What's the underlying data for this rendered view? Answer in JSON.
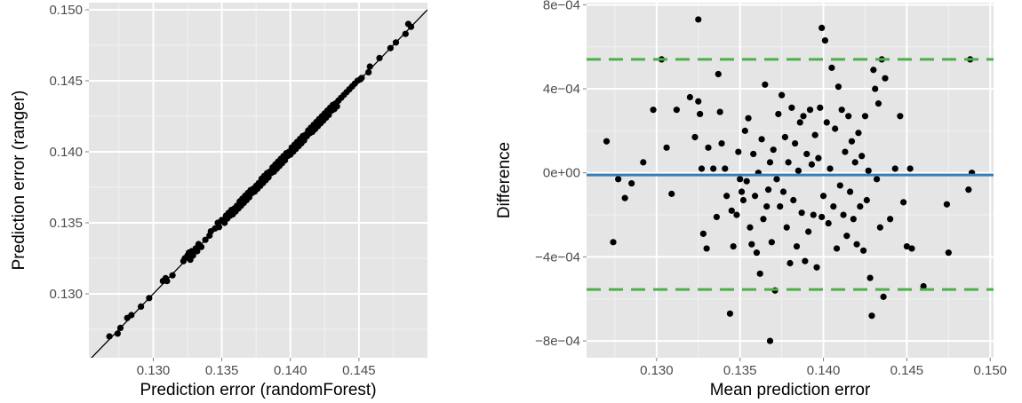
{
  "colors": {
    "panel_background": "#e5e5e5",
    "grid_major": "#ffffff",
    "grid_minor": "#f2f2f2",
    "points": "#000000",
    "identity_line": "#000000",
    "mean_line": "#377eb8",
    "limit_lines": "#4daf4a"
  },
  "chart_data": [
    {
      "type": "scatter",
      "xlabel": "Prediction error (randomForest)",
      "ylabel": "Prediction error (ranger)",
      "xlim": [
        0.1253,
        0.15
      ],
      "ylim": [
        0.1255,
        0.1505
      ],
      "x_ticks": [
        0.13,
        0.135,
        0.14,
        0.145
      ],
      "x_tick_labels": [
        "0.130",
        "0.135",
        "0.140",
        "0.145"
      ],
      "y_ticks": [
        0.13,
        0.135,
        0.14,
        0.145,
        0.15
      ],
      "y_tick_labels": [
        "0.130",
        "0.135",
        "0.140",
        "0.145",
        "0.150"
      ],
      "reference_line": {
        "kind": "identity",
        "slope": 1,
        "intercept": 0
      },
      "grid": true,
      "points": [
        [
          0.1268,
          0.127
        ],
        [
          0.1274,
          0.1272
        ],
        [
          0.1276,
          0.1276
        ],
        [
          0.1281,
          0.1283
        ],
        [
          0.1284,
          0.1285
        ],
        [
          0.1291,
          0.1291
        ],
        [
          0.1297,
          0.1297
        ],
        [
          0.1307,
          0.1309
        ],
        [
          0.1309,
          0.1311
        ],
        [
          0.131,
          0.1309
        ],
        [
          0.1314,
          0.1313
        ],
        [
          0.1322,
          0.1323
        ],
        [
          0.1323,
          0.1325
        ],
        [
          0.1325,
          0.1327
        ],
        [
          0.1326,
          0.1329
        ],
        [
          0.1327,
          0.1324
        ],
        [
          0.1328,
          0.133
        ],
        [
          0.1329,
          0.1327
        ],
        [
          0.1331,
          0.1332
        ],
        [
          0.1332,
          0.133
        ],
        [
          0.1333,
          0.1335
        ],
        [
          0.1335,
          0.1333
        ],
        [
          0.1338,
          0.1338
        ],
        [
          0.1341,
          0.1341
        ],
        [
          0.1342,
          0.1344
        ],
        [
          0.1345,
          0.1346
        ],
        [
          0.1347,
          0.135
        ],
        [
          0.1348,
          0.1347
        ],
        [
          0.135,
          0.1352
        ],
        [
          0.1352,
          0.135
        ],
        [
          0.1353,
          0.1355
        ],
        [
          0.1354,
          0.1353
        ],
        [
          0.1355,
          0.1357
        ],
        [
          0.1356,
          0.1355
        ],
        [
          0.1357,
          0.1359
        ],
        [
          0.1358,
          0.1356
        ],
        [
          0.1359,
          0.136
        ],
        [
          0.136,
          0.1358
        ],
        [
          0.1361,
          0.1362
        ],
        [
          0.1362,
          0.136
        ],
        [
          0.1363,
          0.1365
        ],
        [
          0.1364,
          0.1362
        ],
        [
          0.1365,
          0.1367
        ],
        [
          0.1366,
          0.1364
        ],
        [
          0.1367,
          0.1369
        ],
        [
          0.1368,
          0.1366
        ],
        [
          0.1369,
          0.1371
        ],
        [
          0.137,
          0.1368
        ],
        [
          0.1371,
          0.1373
        ],
        [
          0.1372,
          0.1371
        ],
        [
          0.1373,
          0.1374
        ],
        [
          0.1374,
          0.1372
        ],
        [
          0.1375,
          0.1376
        ],
        [
          0.1376,
          0.1374
        ],
        [
          0.1377,
          0.1378
        ],
        [
          0.1378,
          0.1376
        ],
        [
          0.1379,
          0.1381
        ],
        [
          0.138,
          0.1378
        ],
        [
          0.1381,
          0.1383
        ],
        [
          0.1382,
          0.138
        ],
        [
          0.1383,
          0.1385
        ],
        [
          0.1384,
          0.1382
        ],
        [
          0.1385,
          0.1386
        ],
        [
          0.1386,
          0.1385
        ],
        [
          0.1387,
          0.1389
        ],
        [
          0.1388,
          0.1386
        ],
        [
          0.1389,
          0.1391
        ],
        [
          0.139,
          0.1388
        ],
        [
          0.1391,
          0.1393
        ],
        [
          0.1392,
          0.139
        ],
        [
          0.1393,
          0.1395
        ],
        [
          0.1394,
          0.1392
        ],
        [
          0.1395,
          0.1397
        ],
        [
          0.1396,
          0.1394
        ],
        [
          0.1397,
          0.1399
        ],
        [
          0.1398,
          0.1397
        ],
        [
          0.1399,
          0.14
        ],
        [
          0.14,
          0.1398
        ],
        [
          0.1401,
          0.1403
        ],
        [
          0.1402,
          0.14
        ],
        [
          0.1403,
          0.1405
        ],
        [
          0.1404,
          0.1402
        ],
        [
          0.1405,
          0.1407
        ],
        [
          0.1406,
          0.1404
        ],
        [
          0.1407,
          0.1409
        ],
        [
          0.1408,
          0.1406
        ],
        [
          0.1409,
          0.1411
        ],
        [
          0.141,
          0.1408
        ],
        [
          0.1411,
          0.1412
        ],
        [
          0.1412,
          0.1411
        ],
        [
          0.1413,
          0.1415
        ],
        [
          0.1414,
          0.1413
        ],
        [
          0.1415,
          0.1417
        ],
        [
          0.1416,
          0.1414
        ],
        [
          0.1417,
          0.1419
        ],
        [
          0.1418,
          0.1416
        ],
        [
          0.1419,
          0.1421
        ],
        [
          0.142,
          0.1418
        ],
        [
          0.1421,
          0.1423
        ],
        [
          0.1422,
          0.142
        ],
        [
          0.1423,
          0.1425
        ],
        [
          0.1424,
          0.1422
        ],
        [
          0.1425,
          0.1427
        ],
        [
          0.1426,
          0.1424
        ],
        [
          0.1427,
          0.1429
        ],
        [
          0.1428,
          0.1426
        ],
        [
          0.1429,
          0.1431
        ],
        [
          0.143,
          0.1429
        ],
        [
          0.1431,
          0.1433
        ],
        [
          0.1432,
          0.143
        ],
        [
          0.1433,
          0.1434
        ],
        [
          0.1434,
          0.1432
        ],
        [
          0.1435,
          0.1436
        ],
        [
          0.1437,
          0.1438
        ],
        [
          0.1439,
          0.144
        ],
        [
          0.1441,
          0.1442
        ],
        [
          0.1443,
          0.1444
        ],
        [
          0.1445,
          0.1446
        ],
        [
          0.1447,
          0.1448
        ],
        [
          0.1449,
          0.145
        ],
        [
          0.1451,
          0.1451
        ],
        [
          0.1452,
          0.1452
        ],
        [
          0.1457,
          0.1456
        ],
        [
          0.1465,
          0.1466
        ],
        [
          0.1473,
          0.1473
        ],
        [
          0.1477,
          0.1477
        ],
        [
          0.1486,
          0.149
        ],
        [
          0.1488,
          0.1488
        ],
        [
          0.1484,
          0.1483
        ],
        [
          0.1458,
          0.146
        ]
      ]
    },
    {
      "type": "scatter",
      "xlabel": "Mean prediction error",
      "ylabel": "Difference",
      "xlim": [
        0.1258,
        0.1502
      ],
      "ylim": [
        -0.00088,
        0.00081
      ],
      "x_ticks": [
        0.13,
        0.135,
        0.14,
        0.145,
        0.15
      ],
      "x_tick_labels": [
        "0.130",
        "0.135",
        "0.140",
        "0.145",
        "0.150"
      ],
      "y_ticks": [
        -0.0008,
        -0.0004,
        0.0,
        0.0004,
        0.0008
      ],
      "y_tick_labels": [
        "−8e−04",
        "−4e−04",
        "0e+00",
        "4e−04",
        "8e−04"
      ],
      "mean_line": -1e-05,
      "limits_of_agreement": [
        0.00054,
        -0.000555
      ],
      "grid": true,
      "points": [
        [
          0.127,
          0.00015
        ],
        [
          0.1274,
          -0.00033
        ],
        [
          0.1277,
          -3e-05
        ],
        [
          0.1281,
          -0.00012
        ],
        [
          0.1285,
          -5e-05
        ],
        [
          0.1292,
          5e-05
        ],
        [
          0.1298,
          0.0003
        ],
        [
          0.1303,
          0.00054
        ],
        [
          0.1306,
          0.00012
        ],
        [
          0.1309,
          -0.0001
        ],
        [
          0.1312,
          0.0003
        ],
        [
          0.132,
          0.00036
        ],
        [
          0.1323,
          0.00017
        ],
        [
          0.1325,
          0.00073
        ],
        [
          0.1325,
          0.00034
        ],
        [
          0.1326,
          0.00028
        ],
        [
          0.1327,
          2e-05
        ],
        [
          0.1328,
          -0.00029
        ],
        [
          0.133,
          -0.00036
        ],
        [
          0.1331,
          0.00012
        ],
        [
          0.1334,
          2e-05
        ],
        [
          0.1336,
          -0.00021
        ],
        [
          0.1337,
          0.00047
        ],
        [
          0.1338,
          0.00029
        ],
        [
          0.1339,
          0.00014
        ],
        [
          0.1341,
          2e-05
        ],
        [
          0.1342,
          -0.00011
        ],
        [
          0.1344,
          -0.00067
        ],
        [
          0.1345,
          -0.00018
        ],
        [
          0.1346,
          -0.00035
        ],
        [
          0.1348,
          -0.0002
        ],
        [
          0.1349,
          0.0001
        ],
        [
          0.135,
          -3e-05
        ],
        [
          0.1351,
          -9e-05
        ],
        [
          0.1352,
          -0.00013
        ],
        [
          0.1353,
          0.0002
        ],
        [
          0.1354,
          -4e-05
        ],
        [
          0.1355,
          0.00026
        ],
        [
          0.1356,
          -0.00026
        ],
        [
          0.1357,
          -0.00034
        ],
        [
          0.1358,
          9e-05
        ],
        [
          0.1359,
          -0.00011
        ],
        [
          0.136,
          -0.00038
        ],
        [
          0.1361,
          0.0
        ],
        [
          0.1362,
          -0.00048
        ],
        [
          0.1363,
          0.00016
        ],
        [
          0.1364,
          -0.00022
        ],
        [
          0.1365,
          0.00042
        ],
        [
          0.1366,
          -0.00016
        ],
        [
          0.1367,
          -8e-05
        ],
        [
          0.1368,
          -0.0008
        ],
        [
          0.1368,
          5e-05
        ],
        [
          0.1369,
          -0.00033
        ],
        [
          0.137,
          0.00011
        ],
        [
          0.1371,
          -0.00056
        ],
        [
          0.1372,
          -3e-05
        ],
        [
          0.1373,
          0.00028
        ],
        [
          0.1374,
          -0.00016
        ],
        [
          0.1375,
          0.00037
        ],
        [
          0.1376,
          -9e-05
        ],
        [
          0.1377,
          0.00017
        ],
        [
          0.1378,
          -0.00026
        ],
        [
          0.1379,
          5e-05
        ],
        [
          0.138,
          -0.00043
        ],
        [
          0.1381,
          0.00031
        ],
        [
          0.1382,
          -0.00013
        ],
        [
          0.1383,
          0.00014
        ],
        [
          0.1384,
          -0.00035
        ],
        [
          0.1385,
          1e-05
        ],
        [
          0.1386,
          0.00024
        ],
        [
          0.1387,
          -0.00019
        ],
        [
          0.1388,
          0.00027
        ],
        [
          0.1389,
          -0.00042
        ],
        [
          0.139,
          9e-05
        ],
        [
          0.1391,
          -0.00028
        ],
        [
          0.1392,
          0.0003
        ],
        [
          0.1393,
          4e-05
        ],
        [
          0.1394,
          -0.0002
        ],
        [
          0.1395,
          0.00018
        ],
        [
          0.1396,
          -0.00045
        ],
        [
          0.1397,
          7e-05
        ],
        [
          0.1398,
          0.00031
        ],
        [
          0.1399,
          -0.00021
        ],
        [
          0.1399,
          0.00069
        ],
        [
          0.14,
          -0.00011
        ],
        [
          0.1401,
          0.00063
        ],
        [
          0.1402,
          0.00024
        ],
        [
          0.1403,
          -0.00024
        ],
        [
          0.1404,
          2e-05
        ],
        [
          0.1405,
          0.0005
        ],
        [
          0.1406,
          -0.00016
        ],
        [
          0.1407,
          0.00021
        ],
        [
          0.1408,
          -0.00036
        ],
        [
          0.1409,
          0.00041
        ],
        [
          0.141,
          -6e-05
        ],
        [
          0.1411,
          0.0003
        ],
        [
          0.1412,
          -0.0002
        ],
        [
          0.1413,
          0.0001
        ],
        [
          0.1414,
          -0.0003
        ],
        [
          0.1415,
          0.00027
        ],
        [
          0.1416,
          -9e-05
        ],
        [
          0.1417,
          0.00015
        ],
        [
          0.1418,
          -0.00022
        ],
        [
          0.1419,
          5e-05
        ],
        [
          0.142,
          -0.00034
        ],
        [
          0.1421,
          0.00019
        ],
        [
          0.1422,
          -0.00016
        ],
        [
          0.1423,
          8e-05
        ],
        [
          0.1424,
          -0.00037
        ],
        [
          0.1425,
          0.00027
        ],
        [
          0.1426,
          -0.00013
        ],
        [
          0.1427,
          1e-05
        ],
        [
          0.1428,
          -0.0005
        ],
        [
          0.1429,
          -0.00068
        ],
        [
          0.143,
          0.00049
        ],
        [
          0.1431,
          0.0004
        ],
        [
          0.1432,
          -3e-05
        ],
        [
          0.1433,
          0.00033
        ],
        [
          0.1434,
          -0.00026
        ],
        [
          0.1435,
          0.00054
        ],
        [
          0.1436,
          -0.00059
        ],
        [
          0.1437,
          0.00045
        ],
        [
          0.144,
          -0.00022
        ],
        [
          0.1443,
          2e-05
        ],
        [
          0.1446,
          0.00027
        ],
        [
          0.1448,
          -0.00014
        ],
        [
          0.145,
          -0.00035
        ],
        [
          0.1452,
          2e-05
        ],
        [
          0.1453,
          -0.00036
        ],
        [
          0.146,
          -0.00054
        ],
        [
          0.1474,
          -0.00015
        ],
        [
          0.1475,
          -0.00038
        ],
        [
          0.1487,
          -8e-05
        ],
        [
          0.1488,
          0.00054
        ],
        [
          0.1489,
          0.0
        ]
      ]
    }
  ]
}
